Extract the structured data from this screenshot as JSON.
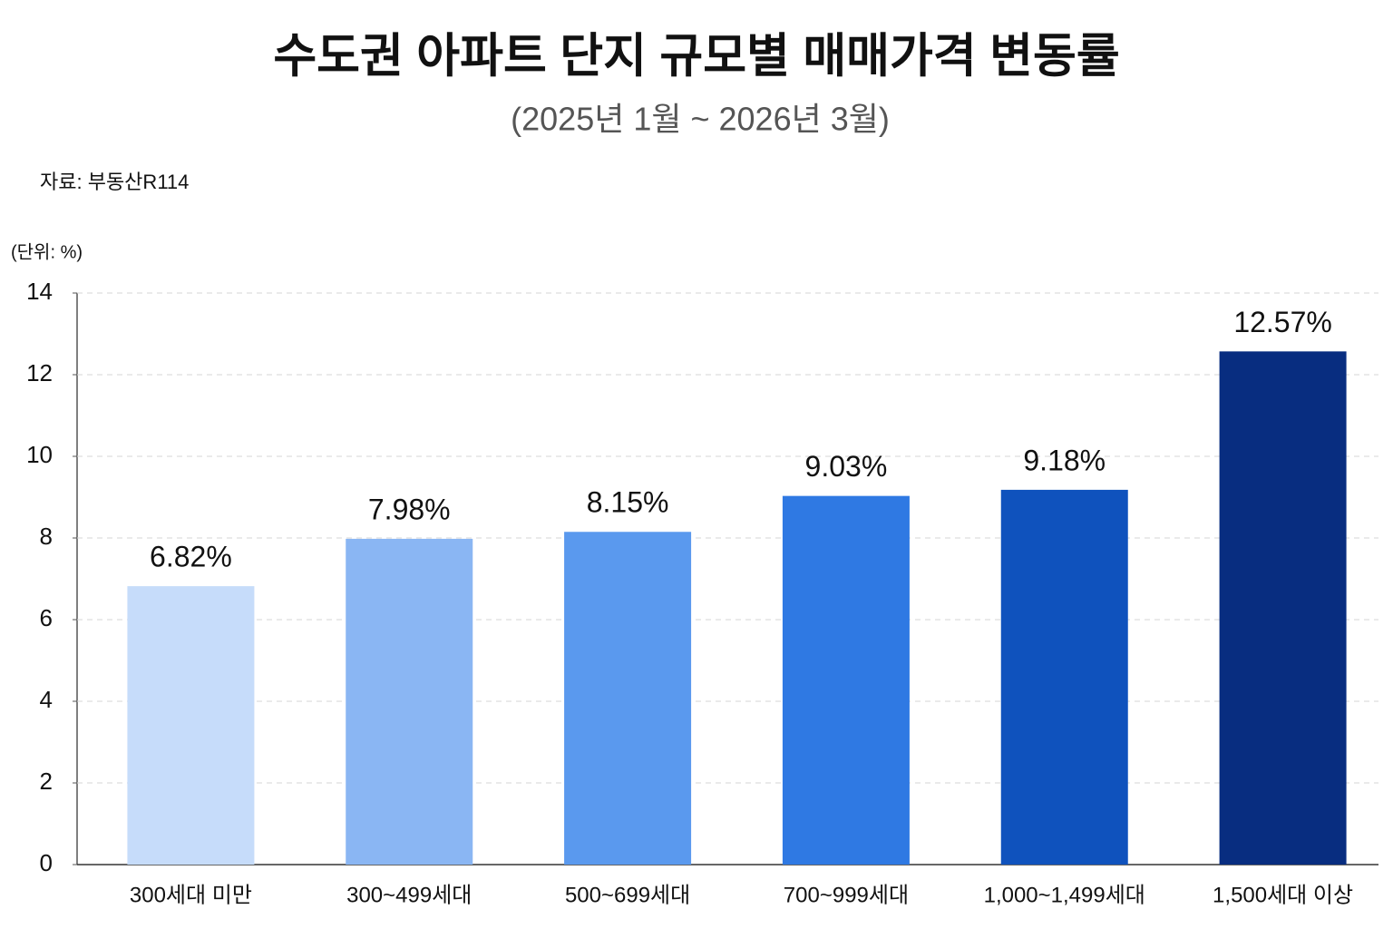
{
  "chart_data": {
    "type": "bar",
    "title": "수도권 아파트 단지 규모별 매매가격 변동률",
    "subtitle": "(2025년 1월 ~ 2026년 3월)",
    "source": "자료:  부동산R114",
    "unit_label": "(단위: %)",
    "categories": [
      "300세대 미만",
      "300~499세대",
      "500~699세대",
      "700~999세대",
      "1,000~1,499세대",
      "1,500세대 이상"
    ],
    "values": [
      6.82,
      7.98,
      8.15,
      9.03,
      9.18,
      12.57
    ],
    "value_labels": [
      "6.82%",
      "7.98%",
      "8.15%",
      "9.03%",
      "9.18%",
      "12.57%"
    ],
    "colors": [
      "#c6dcfa",
      "#8ab6f3",
      "#5a99ee",
      "#2f79e3",
      "#0f52bd",
      "#082d80"
    ],
    "ylim": [
      0,
      14
    ],
    "yticks": [
      0,
      2,
      4,
      6,
      8,
      10,
      12,
      14
    ],
    "grid": true
  }
}
